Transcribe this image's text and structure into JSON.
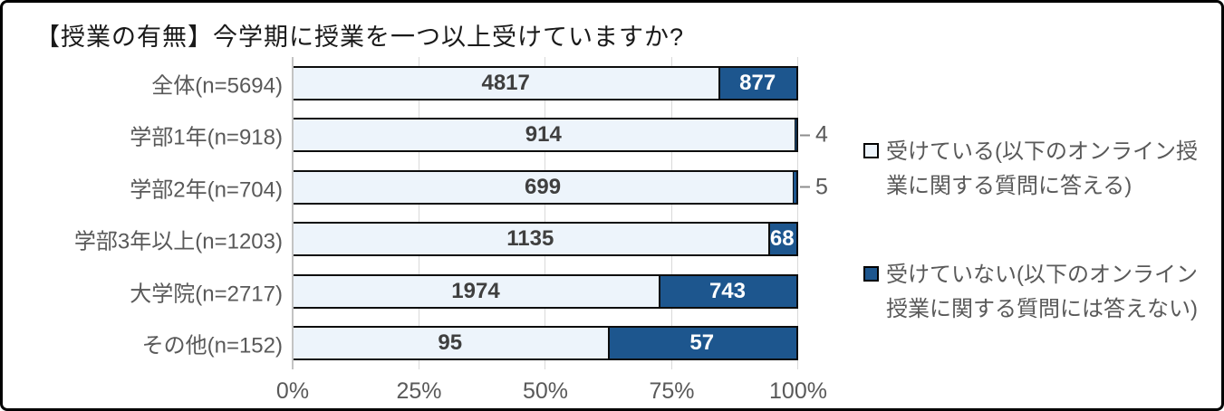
{
  "title": "【授業の有無】今学期に授業を一つ以上受けていますか?",
  "colors": {
    "light_segment": "#edf4fb",
    "dark_segment": "#1d568e",
    "segment_border": "#0d0d0d",
    "gridline": "#d9d9d9",
    "axis_line": "#c3c3c3",
    "axis_text": "#595959",
    "value_text_light_segment": "#3f3f3f",
    "value_text_dark_segment": "#ffffff"
  },
  "legend": {
    "items": [
      {
        "swatch": "light",
        "label": "受けている(以下のオンライン授業に関する質問に答える)"
      },
      {
        "swatch": "dark",
        "label": "受けていない(以下のオンライン授業に関する質問には答えない)"
      }
    ],
    "position": "right"
  },
  "x_axis": {
    "ticks": [
      "0%",
      "25%",
      "50%",
      "75%",
      "100%"
    ],
    "min": 0,
    "max": 100,
    "grid": true
  },
  "chart_data": {
    "type": "bar",
    "orientation": "horizontal",
    "stacked": true,
    "normalized": "percent_within_category",
    "title": "【授業の有無】今学期に授業を一つ以上受けていますか?",
    "categories": [
      "全体(n=5694)",
      "学部1年(n=918)",
      "学部2年(n=704)",
      "学部3年以上(n=1203)",
      "大学院(n=2717)",
      "その他(n=152)"
    ],
    "category_n": [
      5694,
      918,
      704,
      1203,
      2717,
      152
    ],
    "series": [
      {
        "name": "受けている",
        "values": [
          4817,
          914,
          699,
          1135,
          1974,
          95
        ]
      },
      {
        "name": "受けていない",
        "values": [
          877,
          4,
          5,
          68,
          743,
          57
        ]
      }
    ],
    "xlabel": "",
    "ylabel": "",
    "xlim": [
      0,
      100
    ],
    "outside_label_threshold_pct": 2
  }
}
